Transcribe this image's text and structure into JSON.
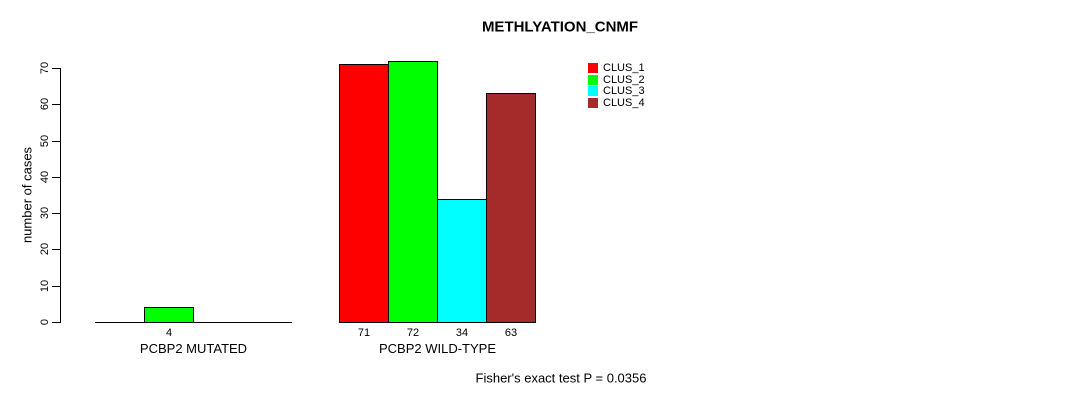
{
  "chart_data": {
    "type": "bar",
    "title": "METHLYATION_CNMF",
    "ylabel": "number of cases",
    "ylim": [
      0,
      70
    ],
    "yticks": [
      0,
      10,
      20,
      30,
      40,
      50,
      60,
      70
    ],
    "grid": false,
    "categories": [
      "PCBP2 MUTATED",
      "PCBP2 WILD-TYPE"
    ],
    "series": [
      {
        "name": "CLUS_1",
        "color": "#FF0000",
        "values": [
          0,
          71
        ]
      },
      {
        "name": "CLUS_2",
        "color": "#00FF00",
        "values": [
          4,
          72
        ]
      },
      {
        "name": "CLUS_3",
        "color": "#00FFFF",
        "values": [
          0,
          34
        ]
      },
      {
        "name": "CLUS_4",
        "color": "#A52A2A",
        "values": [
          0,
          63
        ]
      }
    ],
    "bar_value_labels_shown": [
      "4",
      "71",
      "72",
      "34",
      "63"
    ],
    "legend_position": "inside-top-right-of-bars",
    "annotation": "Fisher's exact test P = 0.0356"
  }
}
